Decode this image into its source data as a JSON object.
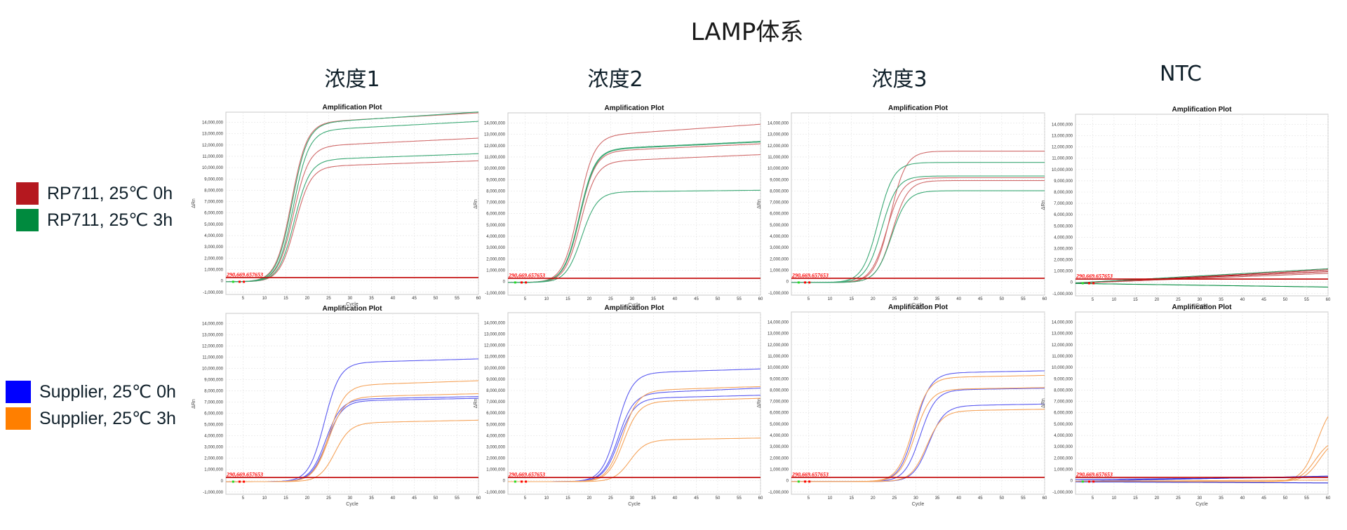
{
  "header": {
    "title": "LAMP体系",
    "columns": [
      "浓度1",
      "浓度2",
      "浓度3",
      "NTC"
    ]
  },
  "legend": {
    "top": [
      {
        "label": "RP711, 25℃ 0h",
        "color": "#b5181f"
      },
      {
        "label": "RP711, 25℃ 3h",
        "color": "#008a3e"
      }
    ],
    "bottom": [
      {
        "label": "Supplier, 25℃ 0h",
        "color": "#0000ff"
      },
      {
        "label": "Supplier, 25℃ 3h",
        "color": "#ff7f00"
      }
    ]
  },
  "plot_common": {
    "title": "Amplification Plot",
    "xlabel": "Cycle",
    "ylabel": "ΔRn",
    "threshold_label": "290,669.657653",
    "threshold_color": "#c00000",
    "xticks": [
      5,
      10,
      15,
      20,
      25,
      30,
      35,
      40,
      45,
      50,
      55,
      60
    ],
    "yticks": [
      -1000000,
      0,
      1000000,
      2000000,
      3000000,
      4000000,
      5000000,
      6000000,
      7000000,
      8000000,
      9000000,
      10000000,
      11000000,
      12000000,
      13000000,
      14000000
    ],
    "ytick_labels": [
      "-1,000,000",
      "0",
      "1,000,000",
      "2,000,000",
      "3,000,000",
      "4,000,000",
      "5,000,000",
      "6,000,000",
      "7,000,000",
      "8,000,000",
      "9,000,000",
      "10,000,000",
      "11,000,000",
      "12,000,000",
      "13,000,000",
      "14,000,000"
    ]
  },
  "chart_data": [
    {
      "type": "line",
      "title": "Amplification Plot",
      "panel": "浓度1 / RP711",
      "xlabel": "Cycle",
      "ylabel": "ΔRn",
      "xlim": [
        1,
        60
      ],
      "ylim": [
        -1200000,
        14900000
      ],
      "threshold": 290669.657653,
      "grid": true,
      "series": [
        {
          "name": "RP711, 25℃ 0h",
          "color": "#d06a6a",
          "onset": 13.3,
          "plateau": 14100000,
          "drift": 0.06
        },
        {
          "name": "RP711, 25℃ 0h",
          "color": "#d06a6a",
          "onset": 13.8,
          "plateau": 12000000,
          "drift": 0.06
        },
        {
          "name": "RP711, 25℃ 0h",
          "color": "#d06a6a",
          "onset": 14.2,
          "plateau": 10200000,
          "drift": 0.05
        },
        {
          "name": "RP711, 25℃ 3h",
          "color": "#3aa874",
          "onset": 13.5,
          "plateau": 14050000,
          "drift": 0.07
        },
        {
          "name": "RP711, 25℃ 3h",
          "color": "#3aa874",
          "onset": 13.8,
          "plateau": 13400000,
          "drift": 0.06
        },
        {
          "name": "RP711, 25℃ 3h",
          "color": "#3aa874",
          "onset": 14.0,
          "plateau": 10800000,
          "drift": 0.05
        }
      ]
    },
    {
      "type": "line",
      "title": "Amplification Plot",
      "panel": "浓度2 / RP711",
      "xlabel": "Cycle",
      "ylabel": "ΔRn",
      "xlim": [
        1,
        60
      ],
      "ylim": [
        -1200000,
        14900000
      ],
      "threshold": 290669.657653,
      "grid": true,
      "series": [
        {
          "name": "RP711, 25℃ 0h",
          "color": "#d06a6a",
          "onset": 14.5,
          "plateau": 13000000,
          "drift": 0.08
        },
        {
          "name": "RP711, 25℃ 0h",
          "color": "#d06a6a",
          "onset": 14.8,
          "plateau": 11600000,
          "drift": 0.06
        },
        {
          "name": "RP711, 25℃ 0h",
          "color": "#d06a6a",
          "onset": 15.0,
          "plateau": 10700000,
          "drift": 0.06
        },
        {
          "name": "RP711, 25℃ 3h",
          "color": "#3aa874",
          "onset": 14.7,
          "plateau": 11800000,
          "drift": 0.06
        },
        {
          "name": "RP711, 25℃ 3h",
          "color": "#3aa874",
          "onset": 14.8,
          "plateau": 11750000,
          "drift": 0.06
        },
        {
          "name": "RP711, 25℃ 3h",
          "color": "#3aa874",
          "onset": 15.2,
          "plateau": 8000000,
          "drift": 0.02
        }
      ]
    },
    {
      "type": "line",
      "title": "Amplification Plot",
      "panel": "浓度3 / RP711",
      "xlabel": "Cycle",
      "ylabel": "ΔRn",
      "xlim": [
        1,
        60
      ],
      "ylim": [
        -1200000,
        14900000
      ],
      "threshold": 290669.657653,
      "grid": true,
      "series": [
        {
          "name": "RP711, 25℃ 0h",
          "color": "#d06a6a",
          "onset": 21.0,
          "plateau": 11600000,
          "drift": 0.0
        },
        {
          "name": "RP711, 25℃ 0h",
          "color": "#d06a6a",
          "onset": 20.2,
          "plateau": 9250000,
          "drift": 0.0
        },
        {
          "name": "RP711, 25℃ 0h",
          "color": "#d06a6a",
          "onset": 21.5,
          "plateau": 9000000,
          "drift": 0.0
        },
        {
          "name": "RP711, 25℃ 3h",
          "color": "#3aa874",
          "onset": 18.2,
          "plateau": 10600000,
          "drift": 0.0
        },
        {
          "name": "RP711, 25℃ 3h",
          "color": "#3aa874",
          "onset": 19.0,
          "plateau": 9400000,
          "drift": 0.0
        },
        {
          "name": "RP711, 25℃ 3h",
          "color": "#3aa874",
          "onset": 21.3,
          "plateau": 8100000,
          "drift": 0.0
        }
      ]
    },
    {
      "type": "line",
      "title": "Amplification Plot",
      "panel": "NTC / RP711",
      "xlabel": "Cycle",
      "ylabel": "ΔRn",
      "xlim": [
        1,
        60
      ],
      "ylim": [
        -1200000,
        14900000
      ],
      "threshold": 290669.657653,
      "grid": true,
      "series": [
        {
          "name": "RP711, 25℃ 0h",
          "color": "#b5181f",
          "linear": [
            -100000,
            1100000
          ]
        },
        {
          "name": "RP711, 25℃ 0h",
          "color": "#b5181f",
          "linear": [
            -60000,
            950000
          ]
        },
        {
          "name": "RP711, 25℃ 0h",
          "color": "#c45a5a",
          "linear": [
            -80000,
            800000
          ]
        },
        {
          "name": "RP711, 25℃ 3h",
          "color": "#2f8f5a",
          "linear": [
            -50000,
            1200000
          ]
        },
        {
          "name": "RP711, 25℃ 3h",
          "color": "#008a3e",
          "linear": [
            -100000,
            -420000
          ]
        }
      ]
    },
    {
      "type": "line",
      "title": "Amplification Plot",
      "panel": "浓度1 / Supplier",
      "xlabel": "Cycle",
      "ylabel": "ΔRn",
      "xlim": [
        1,
        60
      ],
      "ylim": [
        -1200000,
        14900000
      ],
      "threshold": 290669.657653,
      "grid": true,
      "series": [
        {
          "name": "Supplier, 25℃ 0h",
          "color": "#5a5af0",
          "onset": 21.0,
          "plateau": 10600000,
          "drift": 0.04
        },
        {
          "name": "Supplier, 25℃ 0h",
          "color": "#5a5af0",
          "onset": 21.3,
          "plateau": 7350000,
          "drift": 0.04
        },
        {
          "name": "Supplier, 25℃ 0h",
          "color": "#5a5af0",
          "onset": 21.6,
          "plateau": 7200000,
          "drift": 0.04
        },
        {
          "name": "Supplier, 25℃ 3h",
          "color": "#f5a35a",
          "onset": 22.2,
          "plateau": 8600000,
          "drift": 0.06
        },
        {
          "name": "Supplier, 25℃ 3h",
          "color": "#f5a35a",
          "onset": 22.0,
          "plateau": 7550000,
          "drift": 0.05
        },
        {
          "name": "Supplier, 25℃ 3h",
          "color": "#f5a35a",
          "onset": 23.5,
          "plateau": 5250000,
          "drift": 0.06
        }
      ]
    },
    {
      "type": "line",
      "title": "Amplification Plot",
      "panel": "浓度2 / Supplier",
      "xlabel": "Cycle",
      "ylabel": "ΔRn",
      "xlim": [
        1,
        60
      ],
      "ylim": [
        -1200000,
        14900000
      ],
      "threshold": 290669.657653,
      "grid": true,
      "series": [
        {
          "name": "Supplier, 25℃ 0h",
          "color": "#5a5af0",
          "onset": 23.5,
          "plateau": 9650000,
          "drift": 0.05
        },
        {
          "name": "Supplier, 25℃ 0h",
          "color": "#5a5af0",
          "onset": 23.8,
          "plateau": 7850000,
          "drift": 0.08
        },
        {
          "name": "Supplier, 25℃ 0h",
          "color": "#5a5af0",
          "onset": 24.0,
          "plateau": 7400000,
          "drift": 0.05
        },
        {
          "name": "Supplier, 25℃ 3h",
          "color": "#f5a35a",
          "onset": 24.8,
          "plateau": 8100000,
          "drift": 0.06
        },
        {
          "name": "Supplier, 25℃ 3h",
          "color": "#f5a35a",
          "onset": 25.0,
          "plateau": 7100000,
          "drift": 0.06
        },
        {
          "name": "Supplier, 25℃ 3h",
          "color": "#f5a35a",
          "onset": 26.5,
          "plateau": 3700000,
          "drift": 0.07
        }
      ]
    },
    {
      "type": "line",
      "title": "Amplification Plot",
      "panel": "浓度3 / Supplier",
      "xlabel": "Cycle",
      "ylabel": "ΔRn",
      "xlim": [
        1,
        60
      ],
      "ylim": [
        -1200000,
        14900000
      ],
      "threshold": 290669.657653,
      "grid": true,
      "series": [
        {
          "name": "Supplier, 25℃ 0h",
          "color": "#5a5af0",
          "onset": 26.8,
          "plateau": 9600000,
          "drift": 0.03
        },
        {
          "name": "Supplier, 25℃ 0h",
          "color": "#5a5af0",
          "onset": 28.0,
          "plateau": 8100000,
          "drift": 0.03
        },
        {
          "name": "Supplier, 25℃ 0h",
          "color": "#5a5af0",
          "onset": 30.0,
          "plateau": 6700000,
          "drift": 0.04
        },
        {
          "name": "Supplier, 25℃ 3h",
          "color": "#f5a35a",
          "onset": 26.3,
          "plateau": 9200000,
          "drift": 0.03
        },
        {
          "name": "Supplier, 25℃ 3h",
          "color": "#f5a35a",
          "onset": 26.8,
          "plateau": 8150000,
          "drift": 0.03
        },
        {
          "name": "Supplier, 25℃ 3h",
          "color": "#f5a35a",
          "onset": 29.5,
          "plateau": 6250000,
          "drift": 0.04
        }
      ]
    },
    {
      "type": "line",
      "title": "Amplification Plot",
      "panel": "NTC / Supplier",
      "xlabel": "Cycle",
      "ylabel": "ΔRn",
      "xlim": [
        1,
        60
      ],
      "ylim": [
        -1200000,
        14900000
      ],
      "threshold": 290669.657653,
      "grid": true,
      "series": [
        {
          "name": "Supplier, 25℃ 3h",
          "color": "#f5a35a",
          "onset": 54.5,
          "plateau": 7200000,
          "drift": 0.0
        },
        {
          "name": "Supplier, 25℃ 3h",
          "color": "#f5a35a",
          "onset": 54.0,
          "plateau": 3800000,
          "drift": 0.0
        },
        {
          "name": "Supplier, 25℃ 3h",
          "color": "#f5a35a",
          "onset": 55.0,
          "plateau": 3900000,
          "drift": 0.0
        },
        {
          "name": "Supplier, 25℃ 0h",
          "color": "#2a2ad8",
          "linear": [
            -50000,
            400000
          ]
        },
        {
          "name": "Supplier, 25℃ 0h",
          "color": "#2a2ad8",
          "linear": [
            -100000,
            -200000
          ]
        },
        {
          "name": "Supplier, 25℃ 0h",
          "color": "#3030e0",
          "linear": [
            100000,
            300000
          ]
        },
        {
          "name": "Supplier, 25℃ 3h",
          "color": "#f5a35a",
          "linear": [
            -50000,
            50000
          ]
        }
      ]
    }
  ]
}
